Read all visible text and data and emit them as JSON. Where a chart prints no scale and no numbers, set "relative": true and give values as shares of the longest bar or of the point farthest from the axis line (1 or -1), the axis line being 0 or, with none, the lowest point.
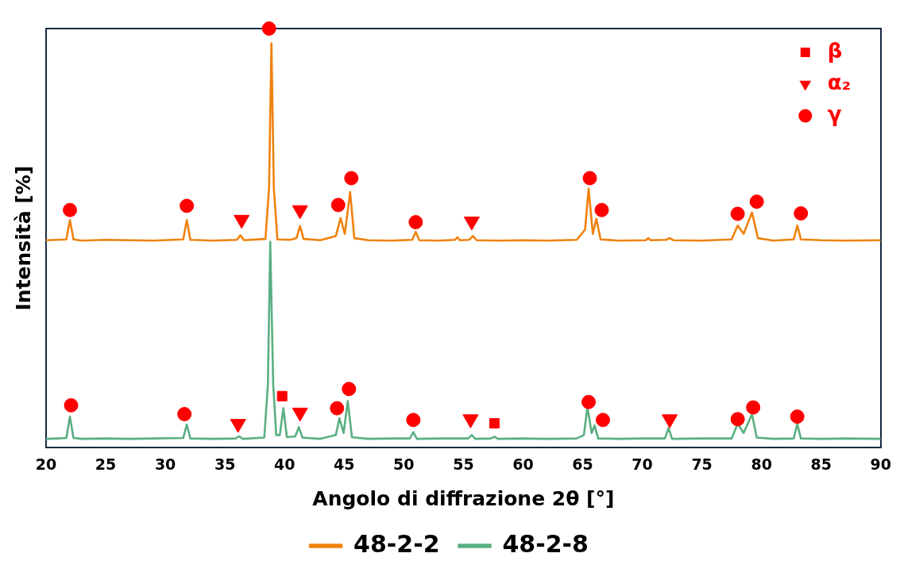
{
  "chart_data": {
    "type": "line",
    "relative": true,
    "xlabel": "Angolo di diffrazione 2θ [°]",
    "ylabel": "Intensità [%]",
    "xlim": [
      20,
      90
    ],
    "xticks": [
      20,
      25,
      30,
      35,
      40,
      45,
      50,
      55,
      60,
      65,
      70,
      75,
      80,
      85,
      90
    ],
    "grid": false,
    "legend": "bottom",
    "series": [
      {
        "name": "48-2-2",
        "color": "#f0820f",
        "x": [
          20,
          21,
          21.7,
          22.0,
          22.3,
          23,
          25,
          27,
          29,
          31.5,
          31.8,
          32.1,
          34,
          36.0,
          36.3,
          36.6,
          38.4,
          38.7,
          38.9,
          39.1,
          39.4,
          40.5,
          41.0,
          41.3,
          41.6,
          43,
          44.3,
          44.7,
          45.05,
          45.5,
          45.85,
          47,
          49,
          50.7,
          51.0,
          51.3,
          53,
          54.3,
          54.5,
          54.7,
          55.5,
          55.8,
          56.1,
          58,
          60,
          62,
          64.5,
          65.2,
          65.5,
          65.85,
          66.15,
          66.5,
          68,
          70.3,
          70.5,
          70.7,
          72.0,
          72.3,
          72.6,
          75,
          77.5,
          78.0,
          78.5,
          79.2,
          79.7,
          81,
          82.7,
          83.0,
          83.3,
          85,
          87,
          90
        ],
        "values": [
          0.495,
          0.496,
          0.497,
          0.543,
          0.497,
          0.494,
          0.496,
          0.495,
          0.494,
          0.497,
          0.543,
          0.496,
          0.494,
          0.496,
          0.507,
          0.495,
          0.498,
          0.62,
          0.965,
          0.62,
          0.497,
          0.496,
          0.5,
          0.529,
          0.498,
          0.495,
          0.505,
          0.548,
          0.51,
          0.61,
          0.5,
          0.495,
          0.494,
          0.496,
          0.515,
          0.495,
          0.494,
          0.496,
          0.502,
          0.495,
          0.496,
          0.505,
          0.495,
          0.494,
          0.495,
          0.494,
          0.496,
          0.52,
          0.618,
          0.51,
          0.546,
          0.497,
          0.494,
          0.495,
          0.5,
          0.495,
          0.496,
          0.5,
          0.495,
          0.494,
          0.497,
          0.53,
          0.51,
          0.561,
          0.5,
          0.494,
          0.497,
          0.53,
          0.497,
          0.495,
          0.494,
          0.495
        ]
      },
      {
        "name": "48-2-8",
        "color": "#5aaf82",
        "x": [
          20,
          21,
          21.7,
          22.0,
          22.3,
          23,
          25,
          27,
          29,
          31.5,
          31.8,
          32.1,
          34,
          35.9,
          36.2,
          36.5,
          38.3,
          38.6,
          38.8,
          39.05,
          39.3,
          39.6,
          39.9,
          40.2,
          40.9,
          41.2,
          41.5,
          43,
          44.3,
          44.6,
          44.95,
          45.3,
          45.65,
          47,
          49,
          50.5,
          50.8,
          51.1,
          53,
          55.4,
          55.7,
          56.0,
          57.3,
          57.6,
          57.9,
          60,
          62,
          64.5,
          65.1,
          65.4,
          65.75,
          66.0,
          66.3,
          68,
          70,
          71.9,
          72.2,
          72.5,
          75,
          77.5,
          78.0,
          78.5,
          79.2,
          79.6,
          81,
          82.7,
          83.0,
          83.3,
          85,
          87,
          90
        ],
        "values": [
          0.021,
          0.022,
          0.023,
          0.074,
          0.023,
          0.021,
          0.022,
          0.021,
          0.022,
          0.023,
          0.055,
          0.022,
          0.021,
          0.022,
          0.027,
          0.021,
          0.024,
          0.15,
          0.491,
          0.15,
          0.03,
          0.03,
          0.094,
          0.025,
          0.027,
          0.049,
          0.024,
          0.021,
          0.03,
          0.07,
          0.035,
          0.111,
          0.025,
          0.021,
          0.022,
          0.022,
          0.037,
          0.021,
          0.022,
          0.022,
          0.03,
          0.021,
          0.022,
          0.026,
          0.021,
          0.022,
          0.021,
          0.022,
          0.03,
          0.097,
          0.035,
          0.053,
          0.022,
          0.021,
          0.022,
          0.022,
          0.047,
          0.021,
          0.022,
          0.022,
          0.057,
          0.035,
          0.08,
          0.024,
          0.021,
          0.022,
          0.057,
          0.022,
          0.021,
          0.022,
          0.021
        ]
      },
      {
        "name": "β",
        "type": "scatter",
        "marker": "square",
        "color": "#ff0000",
        "x": [
          39.8,
          57.6
        ],
        "values": [
          0.123,
          0.058
        ]
      },
      {
        "name": "α₂",
        "type": "scatter",
        "marker": "triangle",
        "color": "#ff0000",
        "x": [
          36.4,
          41.3,
          55.7,
          36.1,
          41.3,
          55.6,
          72.3
        ],
        "values": [
          0.544,
          0.567,
          0.54,
          0.057,
          0.084,
          0.068,
          0.068
        ]
      },
      {
        "name": "γ",
        "type": "scatter",
        "marker": "circle",
        "color": "#ff0000",
        "x": [
          22.0,
          31.8,
          38.7,
          44.5,
          45.6,
          51.0,
          65.6,
          66.6,
          78.0,
          79.6,
          83.3,
          22.1,
          31.6,
          44.4,
          45.4,
          50.8,
          65.5,
          66.7,
          78.0,
          79.3,
          83.0
        ],
        "values": [
          0.567,
          0.577,
          1.0,
          0.579,
          0.643,
          0.538,
          0.643,
          0.567,
          0.558,
          0.587,
          0.559,
          0.101,
          0.08,
          0.094,
          0.14,
          0.066,
          0.109,
          0.066,
          0.068,
          0.096,
          0.074
        ]
      }
    ]
  }
}
